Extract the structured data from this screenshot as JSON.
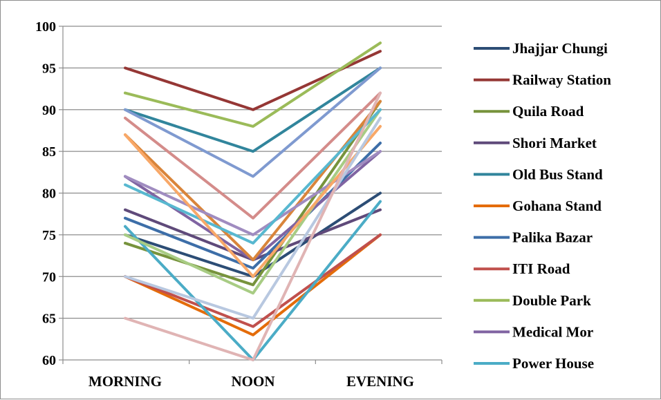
{
  "chart_data": {
    "type": "line",
    "title": "",
    "xlabel": "",
    "ylabel": "",
    "categories": [
      "MORNING",
      "NOON",
      "EVENING"
    ],
    "ylim": [
      60,
      100
    ],
    "yticks": [
      60,
      65,
      70,
      75,
      80,
      85,
      90,
      95,
      100
    ],
    "grid": true,
    "legend_position": "right",
    "series": [
      {
        "name": "Jhajjar Chungi",
        "color": "#2c4d75",
        "values": [
          75,
          70,
          80
        ]
      },
      {
        "name": "Railway Station",
        "color": "#953735",
        "values": [
          95,
          90,
          97
        ]
      },
      {
        "name": "Quila Road",
        "color": "#77933c",
        "values": [
          74,
          69,
          91
        ]
      },
      {
        "name": "Shori Market",
        "color": "#5f4a7a",
        "values": [
          78,
          72,
          78
        ]
      },
      {
        "name": "Old Bus Stand",
        "color": "#31859c",
        "values": [
          90,
          85,
          95
        ]
      },
      {
        "name": "Gohana Stand",
        "color": "#e46c0a",
        "values": [
          70,
          63,
          75
        ]
      },
      {
        "name": "Palika Bazar",
        "color": "#3d6ea8",
        "values": [
          77,
          71,
          86
        ]
      },
      {
        "name": "ITI Road",
        "color": "#c0504d",
        "values": [
          70,
          64,
          75
        ]
      },
      {
        "name": "Double Park",
        "color": "#9bbb59",
        "values": [
          92,
          88,
          98
        ]
      },
      {
        "name": "Medical Mor",
        "color": "#8064a2",
        "values": [
          82,
          72,
          85
        ]
      },
      {
        "name": "Power House",
        "color": "#4bacc6",
        "values": [
          76,
          60,
          79
        ]
      },
      {
        "name": "",
        "color": "#d9853b",
        "values": [
          87,
          72,
          91
        ]
      },
      {
        "name": "",
        "color": "#7f9ad0",
        "values": [
          90,
          82,
          95
        ]
      },
      {
        "name": "",
        "color": "#d48c8a",
        "values": [
          89,
          77,
          92
        ]
      },
      {
        "name": "",
        "color": "#a8cc84",
        "values": [
          75,
          68,
          90
        ]
      },
      {
        "name": "",
        "color": "#a08cc0",
        "values": [
          82,
          75,
          85
        ]
      },
      {
        "name": "",
        "color": "#58b8d0",
        "values": [
          81,
          74,
          90
        ]
      },
      {
        "name": "",
        "color": "#f8a868",
        "values": [
          87,
          70,
          88
        ]
      },
      {
        "name": "",
        "color": "#b8c8e0",
        "values": [
          70,
          65,
          89
        ]
      },
      {
        "name": "",
        "color": "#e0b4b4",
        "values": [
          65,
          60,
          92
        ]
      }
    ]
  }
}
